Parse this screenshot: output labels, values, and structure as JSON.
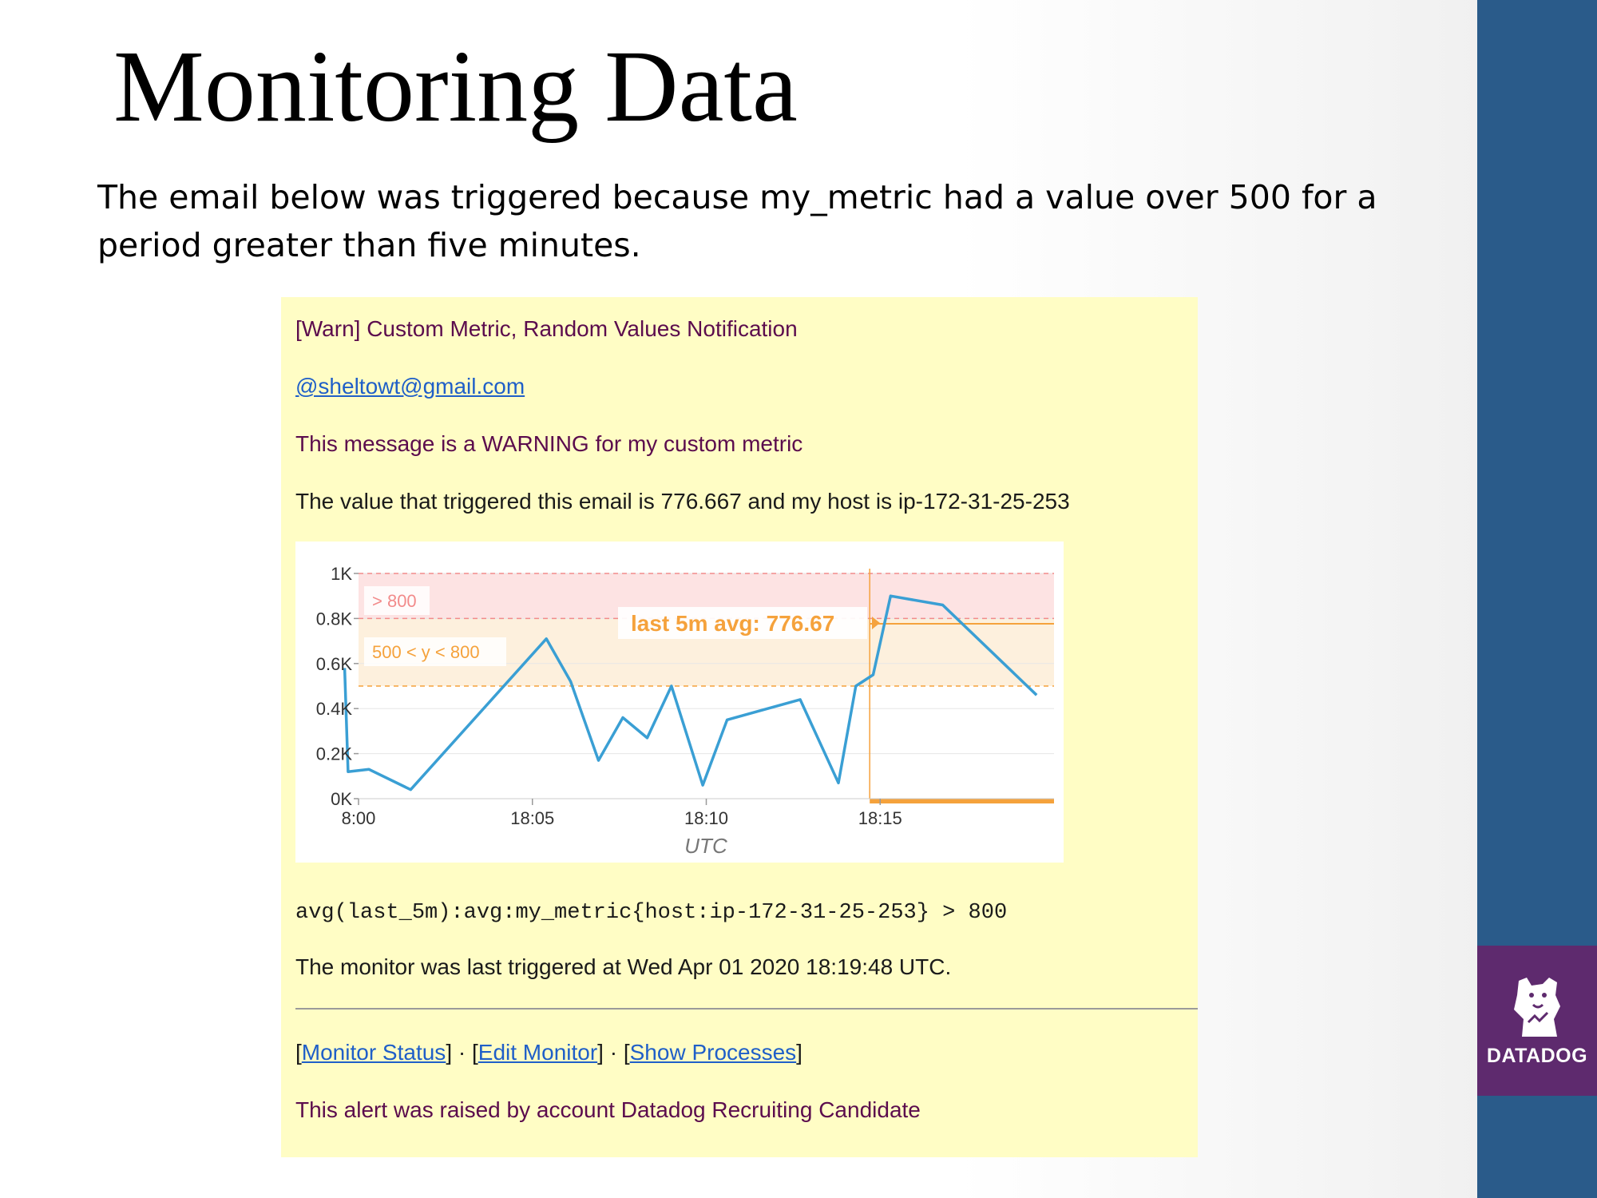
{
  "slide": {
    "title": "Monitoring Data",
    "subtitle": "The email below was triggered because my_metric had a value over 500 for a period greater than five minutes."
  },
  "email": {
    "subject": "[Warn] Custom Metric, Random Values Notification",
    "mention": "@sheltowt@gmail.com",
    "message": "This message is a WARNING for my custom metric",
    "value_line": "The value that triggered this email is 776.667 and my host is ip-172-31-25-253",
    "query": "avg(last_5m):avg:my_metric{host:ip-172-31-25-253} > 800",
    "last_triggered": "The monitor was last triggered at Wed Apr 01 2020 18:19:48 UTC.",
    "links": {
      "open": "[",
      "monitor_status": "Monitor Status",
      "sep1": "] · [",
      "edit_monitor": "Edit Monitor",
      "sep2": "] · [",
      "show_processes": "Show Processes",
      "close": "]"
    },
    "footer": "This alert was raised by account Datadog Recruiting Candidate"
  },
  "brand": {
    "logo_text": "DATADOG"
  },
  "colors": {
    "sidebar": "#2a5b8a",
    "logo_bg": "#5e2a6e",
    "email_bg": "#fffdc5",
    "series": "#3a9fd4",
    "warn": "#f5a23c",
    "alert": "#f28b8b"
  },
  "chart_data": {
    "type": "line",
    "xlabel": "UTC",
    "x_ticks": [
      "8:00",
      "18:05",
      "18:10",
      "18:15"
    ],
    "x_tick_minutes": [
      0,
      5,
      10,
      15
    ],
    "y_ticks": [
      "0K",
      "0.2K",
      "0.4K",
      "0.6K",
      "0.8K",
      "1K"
    ],
    "y_tick_values": [
      0,
      200,
      400,
      600,
      800,
      1000
    ],
    "xlim": [
      0,
      20
    ],
    "ylim": [
      0,
      1000
    ],
    "series": [
      {
        "x": [
          -0.4,
          -0.3,
          0.3,
          1.5,
          5.4,
          6.1,
          6.9,
          7.6,
          8.3,
          9.0,
          9.9,
          10.6,
          12.7,
          13.8,
          14.3,
          14.8,
          15.3,
          16.8,
          19.5
        ],
        "y": [
          580,
          120,
          130,
          40,
          710,
          520,
          170,
          360,
          270,
          500,
          60,
          350,
          440,
          70,
          500,
          550,
          900,
          860,
          460
        ]
      }
    ],
    "thresholds": [
      {
        "label": "> 800",
        "from": 800,
        "to": 1000,
        "color": "#f28b8b"
      },
      {
        "label": "500 < y < 800",
        "from": 500,
        "to": 800,
        "color": "#f5a23c"
      }
    ],
    "eval_window_start": 14.7,
    "avg_label": "last 5m avg: 776.67",
    "avg_value": 776.67,
    "grid": true
  }
}
